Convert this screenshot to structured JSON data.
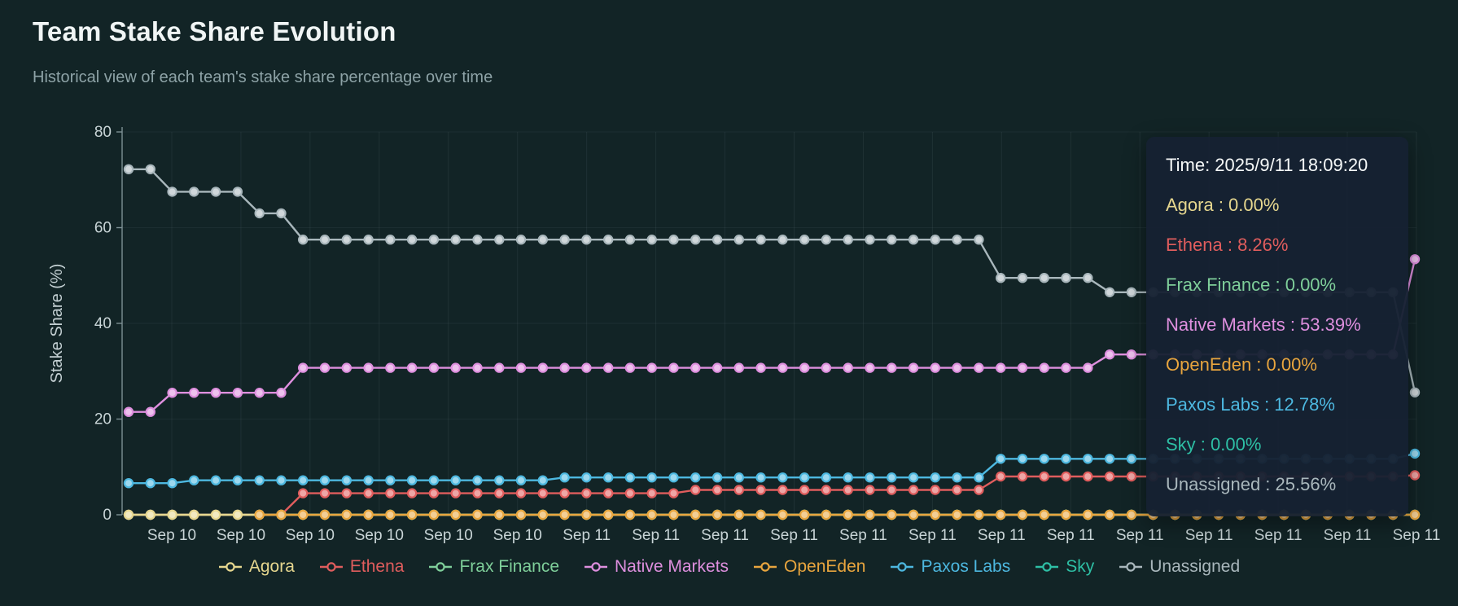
{
  "title": "Team Stake Share Evolution",
  "subtitle": "Historical view of each team's stake share percentage over time",
  "background": "#122426",
  "tooltip": {
    "time_label": "Time: 2025/9/11 18:09:20",
    "rows": [
      {
        "name": "Agora",
        "value": "0.00%"
      },
      {
        "name": "Ethena",
        "value": "8.26%"
      },
      {
        "name": "Frax Finance",
        "value": "0.00%"
      },
      {
        "name": "Native Markets",
        "value": "53.39%"
      },
      {
        "name": "OpenEden",
        "value": "0.00%"
      },
      {
        "name": "Paxos Labs",
        "value": "12.78%"
      },
      {
        "name": "Sky",
        "value": "0.00%"
      },
      {
        "name": "Unassigned",
        "value": "25.56%"
      }
    ]
  },
  "chart_data": {
    "type": "line",
    "title": "Team Stake Share Evolution",
    "xlabel": "",
    "ylabel": "Stake Share (%)",
    "ylim": [
      0,
      80
    ],
    "yticks": [
      0,
      20,
      40,
      60,
      80
    ],
    "grid": true,
    "legend_position": "bottom",
    "n_points": 60,
    "x_tick_labels": [
      "Sep 10",
      "Sep 10",
      "Sep 10",
      "Sep 10",
      "Sep 10",
      "Sep 10",
      "Sep 11",
      "Sep 11",
      "Sep 11",
      "Sep 11",
      "Sep 11",
      "Sep 11",
      "Sep 11",
      "Sep 11",
      "Sep 11",
      "Sep 11",
      "Sep 11",
      "Sep 11",
      "Sep 11"
    ],
    "draw_order": [
      "Frax Finance",
      "Sky",
      "Ethena",
      "Paxos Labs",
      "Native Markets",
      "Unassigned",
      "Agora",
      "OpenEden"
    ],
    "series": [
      {
        "name": "Agora",
        "color": "#e6d78f",
        "values": [
          0,
          0,
          0,
          0,
          0,
          0,
          0,
          0,
          0,
          0,
          0,
          0,
          0,
          0,
          0,
          0,
          0,
          0,
          0,
          0,
          0,
          0,
          0,
          0,
          0,
          0,
          0,
          0,
          0,
          0,
          0,
          0,
          0,
          0,
          0,
          0,
          0,
          0,
          0,
          0,
          0,
          0,
          0,
          0,
          0,
          0,
          0,
          0,
          0,
          0,
          0,
          0,
          0,
          0,
          0,
          0,
          0,
          0,
          0,
          0
        ]
      },
      {
        "name": "Ethena",
        "color": "#e05d5d",
        "values": [
          0,
          0,
          0,
          0,
          0,
          0,
          0,
          0,
          4.5,
          4.5,
          4.5,
          4.5,
          4.5,
          4.5,
          4.5,
          4.5,
          4.5,
          4.5,
          4.5,
          4.5,
          4.5,
          4.5,
          4.5,
          4.5,
          4.5,
          4.5,
          5.2,
          5.2,
          5.2,
          5.2,
          5.2,
          5.2,
          5.2,
          5.2,
          5.2,
          5.2,
          5.2,
          5.2,
          5.2,
          5.2,
          8,
          8,
          8,
          8,
          8,
          8,
          8,
          8,
          8,
          8,
          8,
          8,
          8,
          8,
          8,
          8,
          8,
          8,
          8,
          8.26
        ]
      },
      {
        "name": "Frax Finance",
        "color": "#7fcf9a",
        "values": [
          0,
          0,
          0,
          0,
          0,
          0,
          0,
          0,
          0,
          0,
          0,
          0,
          0,
          0,
          0,
          0,
          0,
          0,
          0,
          0,
          0,
          0,
          0,
          0,
          0,
          0,
          0,
          0,
          0,
          0,
          0,
          0,
          0,
          0,
          0,
          0,
          0,
          0,
          0,
          0,
          0,
          0,
          0,
          0,
          0,
          0,
          0,
          0,
          0,
          0,
          0,
          0,
          0,
          0,
          0,
          0,
          0,
          0,
          0,
          0
        ]
      },
      {
        "name": "Native Markets",
        "color": "#de8fde",
        "values": [
          21.5,
          21.5,
          25.5,
          25.5,
          25.5,
          25.5,
          25.5,
          25.5,
          30.7,
          30.7,
          30.7,
          30.7,
          30.7,
          30.7,
          30.7,
          30.7,
          30.7,
          30.7,
          30.7,
          30.7,
          30.7,
          30.7,
          30.7,
          30.7,
          30.7,
          30.7,
          30.7,
          30.7,
          30.7,
          30.7,
          30.7,
          30.7,
          30.7,
          30.7,
          30.7,
          30.7,
          30.7,
          30.7,
          30.7,
          30.7,
          30.7,
          30.7,
          30.7,
          30.7,
          30.7,
          33.5,
          33.5,
          33.5,
          33.5,
          33.5,
          33.5,
          33.5,
          33.5,
          33.5,
          33.5,
          33.5,
          33.5,
          33.5,
          33.5,
          53.39
        ]
      },
      {
        "name": "OpenEden",
        "color": "#e8a53e",
        "values": [
          null,
          null,
          null,
          null,
          null,
          null,
          0,
          0,
          0,
          0,
          0,
          0,
          0,
          0,
          0,
          0,
          0,
          0,
          0,
          0,
          0,
          0,
          0,
          0,
          0,
          0,
          0,
          0,
          0,
          0,
          0,
          0,
          0,
          0,
          0,
          0,
          0,
          0,
          0,
          0,
          0,
          0,
          0,
          0,
          0,
          0,
          0,
          0,
          0,
          0,
          0,
          0,
          0,
          0,
          0,
          0,
          0,
          0,
          0,
          0
        ]
      },
      {
        "name": "Paxos Labs",
        "color": "#4db8e0",
        "values": [
          6.6,
          6.6,
          6.6,
          7.2,
          7.2,
          7.2,
          7.2,
          7.2,
          7.2,
          7.2,
          7.2,
          7.2,
          7.2,
          7.2,
          7.2,
          7.2,
          7.2,
          7.2,
          7.2,
          7.2,
          7.8,
          7.8,
          7.8,
          7.8,
          7.8,
          7.8,
          7.8,
          7.8,
          7.8,
          7.8,
          7.8,
          7.8,
          7.8,
          7.8,
          7.8,
          7.8,
          7.8,
          7.8,
          7.8,
          7.8,
          11.7,
          11.7,
          11.7,
          11.7,
          11.7,
          11.7,
          11.7,
          11.7,
          11.7,
          11.7,
          11.7,
          11.7,
          11.7,
          11.7,
          11.7,
          11.7,
          11.7,
          11.7,
          11.7,
          12.78
        ]
      },
      {
        "name": "Sky",
        "color": "#2ebfa5",
        "values": [
          0,
          0,
          0,
          0,
          0,
          0,
          0,
          0,
          0,
          0,
          0,
          0,
          0,
          0,
          0,
          0,
          0,
          0,
          0,
          0,
          0,
          0,
          0,
          0,
          0,
          0,
          0,
          0,
          0,
          0,
          0,
          0,
          0,
          0,
          0,
          0,
          0,
          0,
          0,
          0,
          0,
          0,
          0,
          0,
          0,
          0,
          0,
          0,
          0,
          0,
          0,
          0,
          0,
          0,
          0,
          0,
          0,
          0,
          0,
          0
        ]
      },
      {
        "name": "Unassigned",
        "color": "#a9b7bc",
        "values": [
          72.2,
          72.2,
          67.5,
          67.5,
          67.5,
          67.5,
          63,
          63,
          57.5,
          57.5,
          57.5,
          57.5,
          57.5,
          57.5,
          57.5,
          57.5,
          57.5,
          57.5,
          57.5,
          57.5,
          57.5,
          57.5,
          57.5,
          57.5,
          57.5,
          57.5,
          57.5,
          57.5,
          57.5,
          57.5,
          57.5,
          57.5,
          57.5,
          57.5,
          57.5,
          57.5,
          57.5,
          57.5,
          57.5,
          57.5,
          49.5,
          49.5,
          49.5,
          49.5,
          49.5,
          46.5,
          46.5,
          46.5,
          46.5,
          46.5,
          46.5,
          46.5,
          46.5,
          46.5,
          46.5,
          46.5,
          46.5,
          46.5,
          46.5,
          25.56
        ]
      }
    ]
  },
  "legend": [
    "Agora",
    "Ethena",
    "Frax Finance",
    "Native Markets",
    "OpenEden",
    "Paxos Labs",
    "Sky",
    "Unassigned"
  ]
}
